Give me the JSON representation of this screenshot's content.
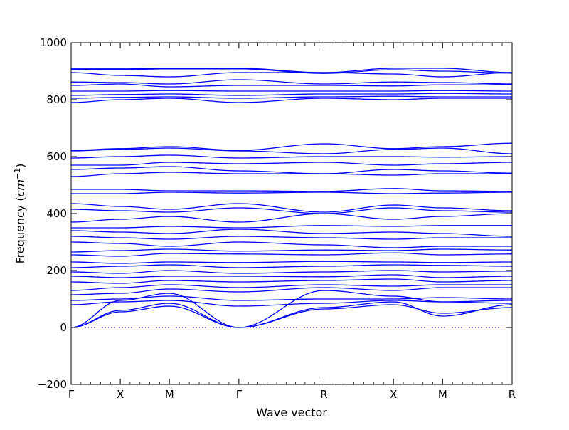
{
  "chart_data": {
    "type": "line",
    "title": "",
    "xlabel": "Wave vector",
    "ylabel_text": "Frequency ",
    "ylabel_unit_base": "cm",
    "ylabel_unit_exp": "−1",
    "ylim": [
      -200,
      1000
    ],
    "yticks": [
      -200,
      0,
      200,
      400,
      600,
      800,
      1000
    ],
    "ytick_labels": [
      "−200",
      "0",
      "200",
      "400",
      "600",
      "800",
      "1000"
    ],
    "xlim": [
      0,
      4.45
    ],
    "path_points": [
      {
        "label": "Γ",
        "x": 0.0
      },
      {
        "label": "X",
        "x": 0.5
      },
      {
        "label": "M",
        "x": 1.0
      },
      {
        "label": "Γ",
        "x": 1.707
      },
      {
        "label": "R",
        "x": 2.573
      },
      {
        "label": "X",
        "x": 3.28
      },
      {
        "label": "M",
        "x": 3.78
      },
      {
        "label": "R",
        "x": 4.487
      }
    ],
    "zero_line": {
      "y": 0,
      "style": "dotted",
      "color": "#0000ff"
    },
    "line_color": "#0000ff",
    "grid": false,
    "legend": "none",
    "series": [
      {
        "x": [
          0,
          0.5,
          1.0,
          1.707,
          2.573,
          3.28,
          3.78,
          4.487
        ],
        "values": [
          0,
          55,
          75,
          0,
          65,
          80,
          50,
          70
        ]
      },
      {
        "x": [
          0,
          0.5,
          1.0,
          1.707,
          2.573,
          3.28,
          3.78,
          4.487
        ],
        "values": [
          0,
          60,
          85,
          0,
          70,
          90,
          40,
          80
        ]
      },
      {
        "x": [
          0,
          0.5,
          1.0,
          1.707,
          2.573,
          3.28,
          3.78,
          4.487
        ],
        "values": [
          0,
          95,
          120,
          0,
          130,
          110,
          90,
          95
        ]
      },
      {
        "x": [
          0,
          0.5,
          1.0,
          1.707,
          2.573,
          3.28,
          3.78,
          4.487
        ],
        "values": [
          80,
          90,
          95,
          75,
          85,
          95,
          90,
          85
        ]
      },
      {
        "x": [
          0,
          0.5,
          1.0,
          1.707,
          2.573,
          3.28,
          3.78,
          4.487
        ],
        "values": [
          95,
          100,
          110,
          95,
          100,
          100,
          105,
          100
        ]
      },
      {
        "x": [
          0,
          0.5,
          1.0,
          1.707,
          2.573,
          3.28,
          3.78,
          4.487
        ],
        "values": [
          115,
          120,
          135,
          125,
          140,
          130,
          140,
          140
        ]
      },
      {
        "x": [
          0,
          0.5,
          1.0,
          1.707,
          2.573,
          3.28,
          3.78,
          4.487
        ],
        "values": [
          130,
          140,
          150,
          140,
          150,
          145,
          150,
          150
        ]
      },
      {
        "x": [
          0,
          0.5,
          1.0,
          1.707,
          2.573,
          3.28,
          3.78,
          4.487
        ],
        "values": [
          160,
          155,
          165,
          160,
          165,
          170,
          160,
          165
        ]
      },
      {
        "x": [
          0,
          0.5,
          1.0,
          1.707,
          2.573,
          3.28,
          3.78,
          4.487
        ],
        "values": [
          180,
          175,
          180,
          180,
          178,
          185,
          175,
          180
        ]
      },
      {
        "x": [
          0,
          0.5,
          1.0,
          1.707,
          2.573,
          3.28,
          3.78,
          4.487
        ],
        "values": [
          195,
          190,
          200,
          190,
          195,
          200,
          195,
          198
        ]
      },
      {
        "x": [
          0,
          0.5,
          1.0,
          1.707,
          2.573,
          3.28,
          3.78,
          4.487
        ],
        "values": [
          210,
          215,
          220,
          210,
          215,
          220,
          218,
          215
        ]
      },
      {
        "x": [
          0,
          0.5,
          1.0,
          1.707,
          2.573,
          3.28,
          3.78,
          4.487
        ],
        "values": [
          230,
          225,
          230,
          228,
          232,
          230,
          228,
          230
        ]
      },
      {
        "x": [
          0,
          0.5,
          1.0,
          1.707,
          2.573,
          3.28,
          3.78,
          4.487
        ],
        "values": [
          255,
          250,
          260,
          258,
          255,
          262,
          255,
          258
        ]
      },
      {
        "x": [
          0,
          0.5,
          1.0,
          1.707,
          2.573,
          3.28,
          3.78,
          4.487
        ],
        "values": [
          265,
          270,
          275,
          268,
          272,
          270,
          275,
          272
        ]
      },
      {
        "x": [
          0,
          0.5,
          1.0,
          1.707,
          2.573,
          3.28,
          3.78,
          4.487
        ],
        "values": [
          300,
          295,
          285,
          300,
          290,
          280,
          285,
          285
        ]
      },
      {
        "x": [
          0,
          0.5,
          1.0,
          1.707,
          2.573,
          3.28,
          3.78,
          4.487
        ],
        "values": [
          320,
          315,
          310,
          320,
          315,
          310,
          315,
          315
        ]
      },
      {
        "x": [
          0,
          0.5,
          1.0,
          1.707,
          2.573,
          3.28,
          3.78,
          4.487
        ],
        "values": [
          340,
          335,
          330,
          345,
          330,
          335,
          330,
          320
        ]
      },
      {
        "x": [
          0,
          0.5,
          1.0,
          1.707,
          2.573,
          3.28,
          3.78,
          4.487
        ],
        "values": [
          350,
          350,
          355,
          350,
          358,
          355,
          358,
          358
        ]
      },
      {
        "x": [
          0,
          0.5,
          1.0,
          1.707,
          2.573,
          3.28,
          3.78,
          4.487
        ],
        "values": [
          370,
          380,
          390,
          370,
          400,
          380,
          390,
          400
        ]
      },
      {
        "x": [
          0,
          0.5,
          1.0,
          1.707,
          2.573,
          3.28,
          3.78,
          4.487
        ],
        "values": [
          415,
          410,
          405,
          420,
          400,
          420,
          410,
          405
        ]
      },
      {
        "x": [
          0,
          0.5,
          1.0,
          1.707,
          2.573,
          3.28,
          3.78,
          4.487
        ],
        "values": [
          435,
          425,
          415,
          435,
          405,
          430,
          420,
          410
        ]
      },
      {
        "x": [
          0,
          0.5,
          1.0,
          1.707,
          2.573,
          3.28,
          3.78,
          4.487
        ],
        "values": [
          470,
          470,
          475,
          472,
          475,
          470,
          472,
          475
        ]
      },
      {
        "x": [
          0,
          0.5,
          1.0,
          1.707,
          2.573,
          3.28,
          3.78,
          4.487
        ],
        "values": [
          485,
          485,
          480,
          480,
          478,
          488,
          480,
          478
        ]
      },
      {
        "x": [
          0,
          0.5,
          1.0,
          1.707,
          2.573,
          3.28,
          3.78,
          4.487
        ],
        "values": [
          530,
          540,
          545,
          540,
          540,
          535,
          540,
          540
        ]
      },
      {
        "x": [
          0,
          0.5,
          1.0,
          1.707,
          2.573,
          3.28,
          3.78,
          4.487
        ],
        "values": [
          555,
          560,
          565,
          550,
          540,
          555,
          550,
          542
        ]
      },
      {
        "x": [
          0,
          0.5,
          1.0,
          1.707,
          2.573,
          3.28,
          3.78,
          4.487
        ],
        "values": [
          570,
          570,
          580,
          575,
          580,
          570,
          575,
          580
        ]
      },
      {
        "x": [
          0,
          0.5,
          1.0,
          1.707,
          2.573,
          3.28,
          3.78,
          4.487
        ],
        "values": [
          595,
          600,
          605,
          595,
          600,
          600,
          598,
          600
        ]
      },
      {
        "x": [
          0,
          0.5,
          1.0,
          1.707,
          2.573,
          3.28,
          3.78,
          4.487
        ],
        "values": [
          620,
          625,
          630,
          620,
          610,
          625,
          630,
          610
        ]
      },
      {
        "x": [
          0,
          0.5,
          1.0,
          1.707,
          2.573,
          3.28,
          3.78,
          4.487
        ],
        "values": [
          622,
          628,
          635,
          622,
          645,
          628,
          635,
          647
        ]
      },
      {
        "x": [
          0,
          0.5,
          1.0,
          1.707,
          2.573,
          3.28,
          3.78,
          4.487
        ],
        "values": [
          790,
          800,
          805,
          790,
          805,
          800,
          805,
          805
        ]
      },
      {
        "x": [
          0,
          0.5,
          1.0,
          1.707,
          2.573,
          3.28,
          3.78,
          4.487
        ],
        "values": [
          805,
          808,
          810,
          805,
          810,
          812,
          810,
          810
        ]
      },
      {
        "x": [
          0,
          0.5,
          1.0,
          1.707,
          2.573,
          3.28,
          3.78,
          4.487
        ],
        "values": [
          815,
          818,
          820,
          815,
          820,
          820,
          822,
          820
        ]
      },
      {
        "x": [
          0,
          0.5,
          1.0,
          1.707,
          2.573,
          3.28,
          3.78,
          4.487
        ],
        "values": [
          830,
          830,
          832,
          830,
          830,
          830,
          832,
          830
        ]
      },
      {
        "x": [
          0,
          0.5,
          1.0,
          1.707,
          2.573,
          3.28,
          3.78,
          4.487
        ],
        "values": [
          850,
          855,
          845,
          850,
          850,
          848,
          852,
          852
        ]
      },
      {
        "x": [
          0,
          0.5,
          1.0,
          1.707,
          2.573,
          3.28,
          3.78,
          4.487
        ],
        "values": [
          862,
          860,
          855,
          870,
          855,
          862,
          860,
          855
        ]
      },
      {
        "x": [
          0,
          0.5,
          1.0,
          1.707,
          2.573,
          3.28,
          3.78,
          4.487
        ],
        "values": [
          895,
          885,
          880,
          895,
          895,
          890,
          880,
          895
        ]
      },
      {
        "x": [
          0,
          0.5,
          1.0,
          1.707,
          2.573,
          3.28,
          3.78,
          4.487
        ],
        "values": [
          905,
          905,
          908,
          908,
          892,
          905,
          900,
          893
        ]
      },
      {
        "x": [
          0,
          0.5,
          1.0,
          1.707,
          2.573,
          3.28,
          3.78,
          4.487
        ],
        "values": [
          908,
          908,
          910,
          910,
          895,
          910,
          910,
          895
        ]
      }
    ]
  }
}
